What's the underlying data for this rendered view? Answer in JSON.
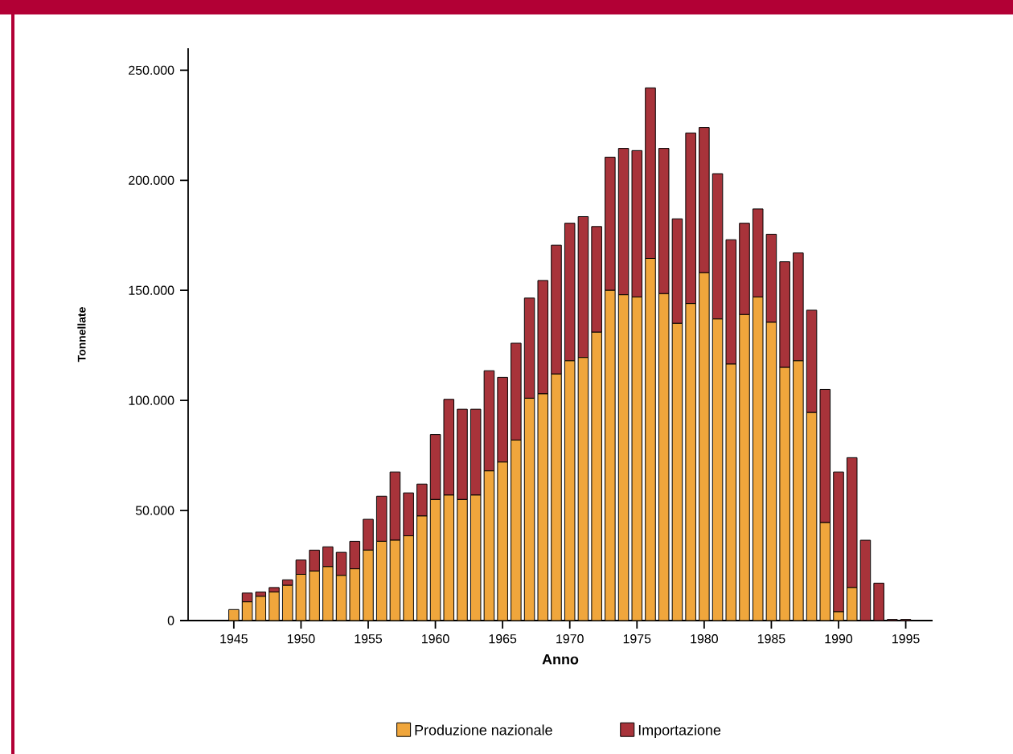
{
  "chart_data": {
    "type": "bar",
    "stacked": true,
    "xlabel": "Anno",
    "ylabel": "Tonnellate",
    "x": [
      1945,
      1946,
      1947,
      1948,
      1949,
      1950,
      1951,
      1952,
      1953,
      1954,
      1955,
      1956,
      1957,
      1958,
      1959,
      1960,
      1961,
      1962,
      1963,
      1964,
      1965,
      1966,
      1967,
      1968,
      1969,
      1970,
      1971,
      1972,
      1973,
      1974,
      1975,
      1976,
      1977,
      1978,
      1979,
      1980,
      1981,
      1982,
      1983,
      1984,
      1985,
      1986,
      1987,
      1988,
      1989,
      1990,
      1991,
      1992,
      1993,
      1994,
      1995
    ],
    "series": [
      {
        "name": "Produzione nazionale",
        "color": "#f0a63c",
        "values": [
          5000,
          8500,
          11000,
          13000,
          16000,
          21000,
          22500,
          24500,
          20500,
          23500,
          32000,
          36000,
          36500,
          38500,
          47500,
          55000,
          57000,
          55000,
          57000,
          68000,
          72000,
          82000,
          101000,
          103000,
          112000,
          118000,
          119500,
          131000,
          150000,
          148000,
          147000,
          164500,
          148500,
          135000,
          144000,
          158000,
          137000,
          116500,
          139000,
          147000,
          135500,
          115000,
          118000,
          94500,
          44500,
          4000,
          15000,
          null,
          null,
          null,
          null
        ]
      },
      {
        "name": "Importazione",
        "color": "#a8333a",
        "values": [
          null,
          4000,
          2000,
          2000,
          2500,
          6500,
          9500,
          9000,
          10500,
          12500,
          14000,
          20500,
          31000,
          19500,
          14500,
          29500,
          43500,
          41000,
          39000,
          45500,
          38500,
          44000,
          45500,
          51500,
          58500,
          62500,
          64000,
          48000,
          60500,
          66500,
          66500,
          77500,
          66000,
          47500,
          77500,
          66000,
          66000,
          56500,
          41500,
          40000,
          40000,
          48000,
          49000,
          46500,
          60500,
          63500,
          59000,
          36500,
          17000,
          500,
          500
        ]
      }
    ],
    "xlim": [
      1941.6,
      1997
    ],
    "ylim": [
      0,
      260000
    ],
    "xticks": [
      1945,
      1950,
      1955,
      1960,
      1965,
      1970,
      1975,
      1980,
      1985,
      1990,
      1995
    ],
    "yticks": [
      0,
      {
        "value": 50000,
        "label": "50.000"
      },
      {
        "value": 100000,
        "label": "100.000"
      },
      {
        "value": 150000,
        "label": "150.000"
      },
      {
        "value": 200000,
        "label": "200.000"
      },
      {
        "value": 250000,
        "label": "250.000"
      }
    ],
    "legend": "bottom"
  }
}
